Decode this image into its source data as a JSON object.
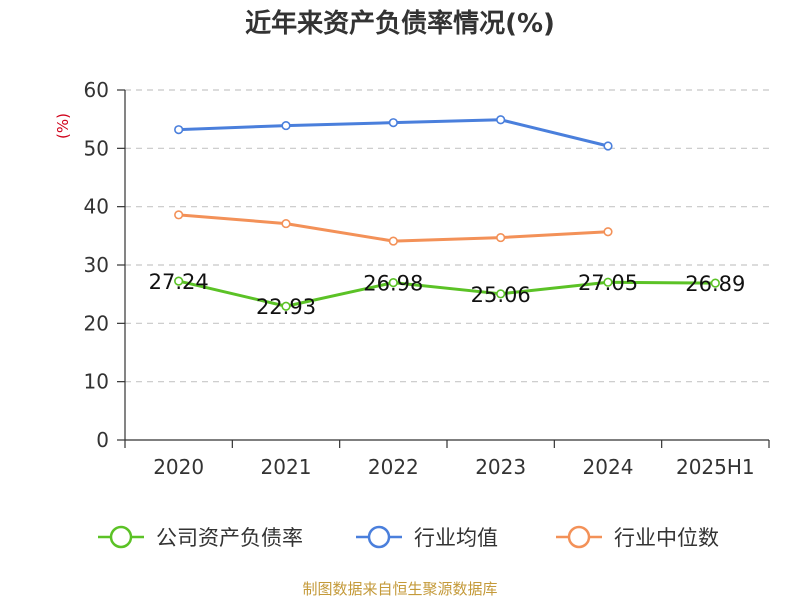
{
  "chart_data": {
    "type": "line",
    "title": "近年来资产负债率情况(%)",
    "ylabel": "(%)",
    "xlabel": "",
    "ylim": [
      0,
      60
    ],
    "yticks": [
      0,
      10,
      20,
      30,
      40,
      50,
      60
    ],
    "categories": [
      "2020",
      "2021",
      "2022",
      "2023",
      "2024",
      "2025H1"
    ],
    "grid": true,
    "legend_position": "bottom",
    "series": [
      {
        "name": "公司资产负债率",
        "color": "#5bc226",
        "values": [
          27.24,
          22.93,
          26.98,
          25.06,
          27.05,
          26.89
        ],
        "show_labels": true
      },
      {
        "name": "行业均值",
        "color": "#4a7fdc",
        "values": [
          53.2,
          53.9,
          54.4,
          54.9,
          50.4,
          null
        ],
        "show_labels": false
      },
      {
        "name": "行业中位数",
        "color": "#f39158",
        "values": [
          38.6,
          37.1,
          34.1,
          34.7,
          35.7,
          null
        ],
        "show_labels": false
      }
    ]
  },
  "ylabel_color": "#d0021b",
  "source": {
    "text": "制图数据来自恒生聚源数据库",
    "color": "#c49a3a"
  }
}
